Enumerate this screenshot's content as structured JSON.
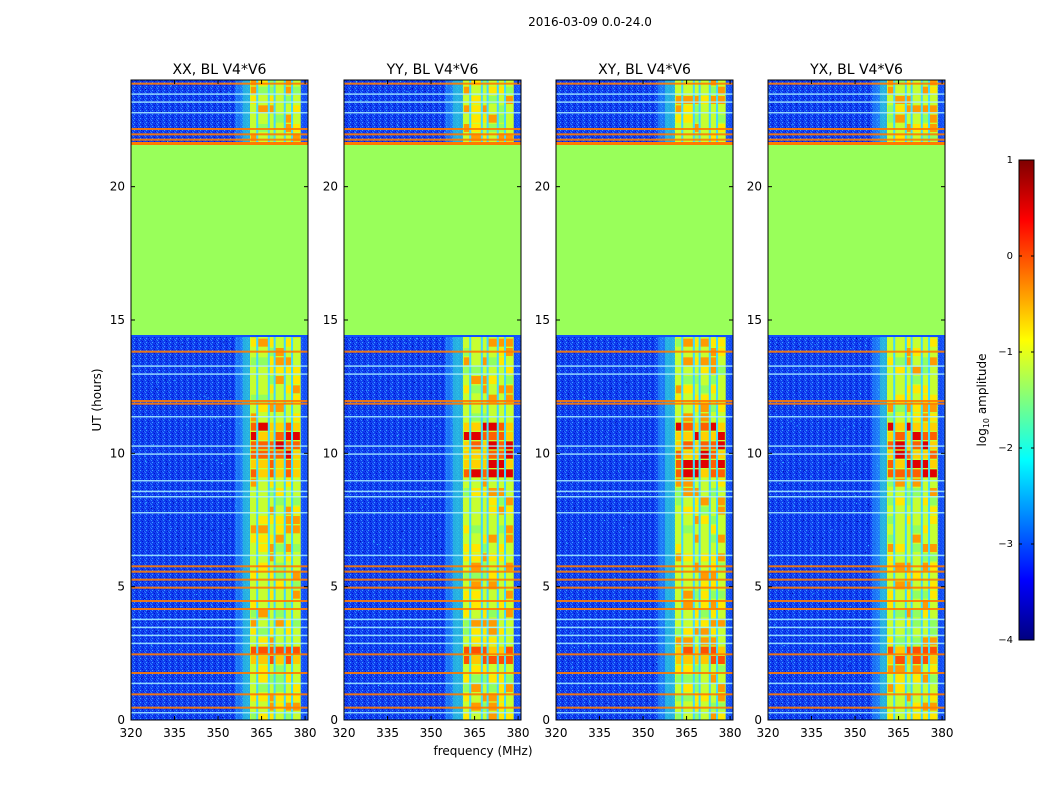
{
  "figure_title": "2016-03-09 0.0-24.0",
  "colorbar": {
    "label_prefix": "log",
    "label_sub": "10",
    "label_suffix": " amplitude",
    "ticks": [
      1,
      0,
      -1,
      -2,
      -3,
      -4
    ],
    "tick_labels": [
      "1",
      "0",
      "−1",
      "−2",
      "−3",
      "−4"
    ],
    "range": [
      -4,
      1
    ],
    "colormap": "jet",
    "colors": [
      "#00007f",
      "#0000ff",
      "#007fff",
      "#00ffff",
      "#7fff7f",
      "#ffff00",
      "#ff7f00",
      "#ff0000",
      "#7f0000"
    ]
  },
  "chart_data": [
    {
      "type": "heatmap",
      "title": "XX, BL V4*V6",
      "xlabel": "",
      "ylabel": "UT (hours)",
      "xlim": [
        320,
        381
      ],
      "ylim": [
        0,
        24
      ],
      "xticks": [
        320,
        335,
        350,
        365,
        380
      ],
      "yticks": [
        0,
        5,
        10,
        15,
        20
      ],
      "flagged_hours": [
        14.4,
        21.6
      ],
      "rfi_band_mhz": [
        361,
        378.5
      ],
      "rfi_onset_mhz": 356
    },
    {
      "type": "heatmap",
      "title": "YY, BL V4*V6",
      "xlabel": "frequency (MHz)",
      "ylabel": "",
      "xlim": [
        320,
        381
      ],
      "ylim": [
        0,
        24
      ],
      "xticks": [
        320,
        335,
        350,
        365,
        380
      ],
      "yticks": [
        0,
        5,
        10,
        15,
        20
      ],
      "flagged_hours": [
        14.4,
        21.6
      ],
      "rfi_band_mhz": [
        361,
        378.5
      ],
      "rfi_onset_mhz": 355
    },
    {
      "type": "heatmap",
      "title": "XY, BL V4*V6",
      "xlabel": "",
      "ylabel": "",
      "xlim": [
        320,
        381
      ],
      "ylim": [
        0,
        24
      ],
      "xticks": [
        320,
        335,
        350,
        365,
        380
      ],
      "yticks": [
        0,
        5,
        10,
        15,
        20
      ],
      "flagged_hours": [
        14.4,
        21.6
      ],
      "rfi_band_mhz": [
        361,
        378.5
      ],
      "rfi_onset_mhz": 355
    },
    {
      "type": "heatmap",
      "title": "YX, BL V4*V6",
      "xlabel": "",
      "ylabel": "",
      "xlim": [
        320,
        381
      ],
      "ylim": [
        0,
        24
      ],
      "xticks": [
        320,
        335,
        350,
        365,
        380
      ],
      "yticks": [
        0,
        5,
        10,
        15,
        20
      ],
      "flagged_hours": [
        14.4,
        21.6
      ],
      "rfi_band_mhz": [
        361,
        378.5
      ],
      "rfi_onset_mhz": 356
    }
  ]
}
